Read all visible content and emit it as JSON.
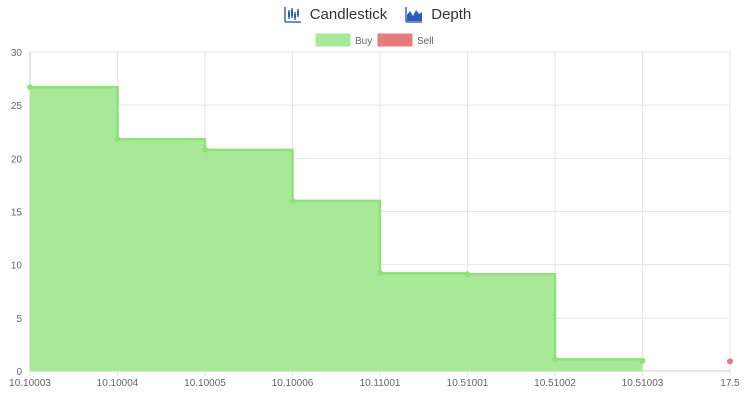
{
  "switcher": {
    "candlestick_label": "Candlestick",
    "depth_label": "Depth"
  },
  "colors": {
    "buy_fill": "#a8e997",
    "buy_line": "#8fe27a",
    "sell_fill": "#e57b7b",
    "icon": "#2e5bb8",
    "grid": "#e6e6e6",
    "axis_text": "#666666"
  },
  "icons": {
    "candlestick": "candlestick-icon",
    "depth": "depth-icon"
  },
  "chart_data": {
    "type": "area",
    "title": "",
    "xlabel": "",
    "ylabel": "",
    "categories": [
      "10.10003",
      "10.10004",
      "10.10005",
      "10.10006",
      "10.11001",
      "10.51001",
      "10.51002",
      "10.51003",
      "17.5"
    ],
    "ylim": [
      0,
      30
    ],
    "yticks": [
      0,
      5,
      10,
      15,
      20,
      25,
      30
    ],
    "grid": true,
    "legend": "top-center",
    "stepped": true,
    "series": [
      {
        "name": "Buy",
        "color": "#a8e997",
        "values": [
          26.7,
          21.8,
          20.8,
          16.0,
          9.2,
          9.1,
          1.1,
          0.95,
          null
        ]
      },
      {
        "name": "Sell",
        "color": "#e57b7b",
        "values": [
          null,
          null,
          null,
          null,
          null,
          null,
          null,
          null,
          0.9
        ]
      }
    ]
  }
}
